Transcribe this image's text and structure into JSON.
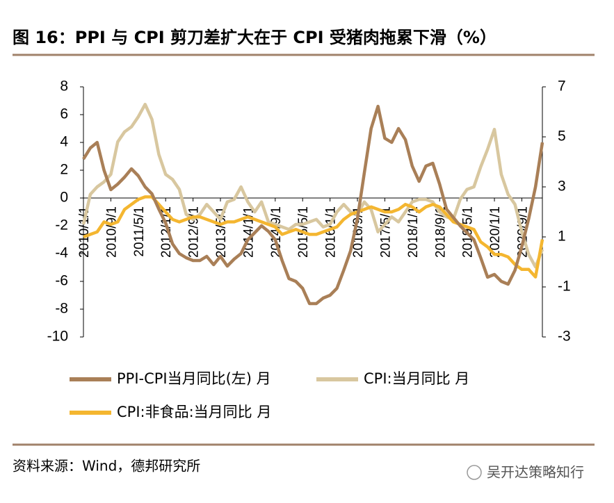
{
  "chart_data": {
    "type": "line",
    "title": "图 16：PPI 与 CPI 剪刀差扩大在于 CPI 受猪肉拖累下滑（%）",
    "source": "资料来源：Wind，德邦研究所",
    "watermark": "吴开达策略知行",
    "categories": [
      "2010/1/1",
      null,
      null,
      null,
      "2010/9/1",
      null,
      null,
      null,
      "2011/5/1",
      null,
      null,
      null,
      "2012/1/1",
      null,
      null,
      null,
      "2012/9/1",
      null,
      null,
      null,
      "2013/5/1",
      null,
      null,
      null,
      "2014/1/1",
      null,
      null,
      null,
      "2014/9/1",
      null,
      null,
      null,
      "2015/5/1",
      null,
      null,
      null,
      "2016/1/1",
      null,
      null,
      null,
      "2016/9/1",
      null,
      null,
      null,
      "2017/5/1",
      null,
      null,
      null,
      "2018/1/1",
      null,
      null,
      null,
      "2018/9/1",
      null,
      null,
      null,
      "2019/5/1",
      null,
      null,
      null,
      "2020/1/1",
      null,
      null,
      null,
      "2020/9/1",
      null,
      null,
      null
    ],
    "ylim": [
      -10,
      8
    ],
    "yticks": [
      8,
      6,
      4,
      2,
      0,
      -2,
      -4,
      -6,
      -8,
      -10
    ],
    "y2lim": [
      -3,
      7
    ],
    "y2ticks": [
      7,
      5,
      3,
      1,
      -1,
      -3
    ],
    "grid": false,
    "series": [
      {
        "name": "CPI:当月同比 月",
        "color": "#d8c79f",
        "axis": "y2",
        "values": [
          1.5,
          2.7,
          3.0,
          3.2,
          3.5,
          4.8,
          5.2,
          5.4,
          5.8,
          6.3,
          5.7,
          4.3,
          3.5,
          3.3,
          2.9,
          1.9,
          1.7,
          1.9,
          2.3,
          2.0,
          1.7,
          2.4,
          2.5,
          3.0,
          2.4,
          2.0,
          2.4,
          1.6,
          1.5,
          1.4,
          1.3,
          1.5,
          1.5,
          1.6,
          1.7,
          1.4,
          1.5,
          2.0,
          2.3,
          2.0,
          1.9,
          2.4,
          2.1,
          1.2,
          1.5,
          1.8,
          1.6,
          2.0,
          2.4,
          2.5,
          2.5,
          2.4,
          2.0,
          1.8,
          1.7,
          2.5,
          2.9,
          3.0,
          3.8,
          4.5,
          5.3,
          3.5,
          2.7,
          2.3,
          1.2,
          0.3,
          -0.2,
          0.5
        ]
      },
      {
        "name": "CPI:非食品:当月同比 月",
        "color": "#f4b630",
        "axis": "y2",
        "values": [
          1.0,
          1.1,
          1.2,
          1.6,
          1.5,
          1.6,
          2.1,
          2.3,
          2.5,
          2.6,
          2.6,
          2.3,
          2.0,
          1.7,
          1.6,
          1.7,
          1.8,
          1.8,
          1.7,
          1.6,
          1.5,
          1.6,
          1.6,
          1.7,
          1.8,
          1.7,
          1.6,
          1.5,
          1.4,
          1.1,
          1.2,
          1.3,
          1.2,
          1.1,
          1.1,
          1.2,
          1.3,
          1.4,
          1.7,
          1.9,
          2.0,
          2.1,
          2.2,
          2.1,
          2.0,
          2.0,
          2.1,
          2.3,
          2.2,
          2.0,
          2.2,
          2.3,
          2.2,
          1.9,
          1.6,
          1.5,
          1.4,
          1.3,
          0.8,
          0.6,
          0.3,
          0.3,
          0.2,
          -0.1,
          -0.3,
          -0.3,
          -0.6,
          0.9
        ]
      },
      {
        "name": "PPI-CPI当月同比(左) 月",
        "color": "#a97f57",
        "axis": "y",
        "values": [
          2.8,
          3.6,
          4,
          2,
          0.6,
          1,
          1.5,
          2.1,
          1.6,
          0.8,
          0.3,
          -0.8,
          -1.8,
          -3.3,
          -4,
          -4.3,
          -4.5,
          -4.5,
          -4.2,
          -4.8,
          -4.2,
          -4.9,
          -4.4,
          -4,
          -3,
          -2.5,
          -2,
          -2.4,
          -3,
          -4.5,
          -5.8,
          -6,
          -6.5,
          -7.6,
          -7.6,
          -7.2,
          -7,
          -6.5,
          -5.2,
          -3.8,
          -1.5,
          1.8,
          5,
          6.6,
          4.3,
          4,
          5,
          4.2,
          2.3,
          1.2,
          2.3,
          2.5,
          1,
          -0.8,
          -1.4,
          -2,
          -2.5,
          -3,
          -4.3,
          -5.7,
          -5.5,
          -6,
          -6.2,
          -5.2,
          -3.5,
          -1.5,
          0.8,
          4
        ]
      }
    ]
  }
}
